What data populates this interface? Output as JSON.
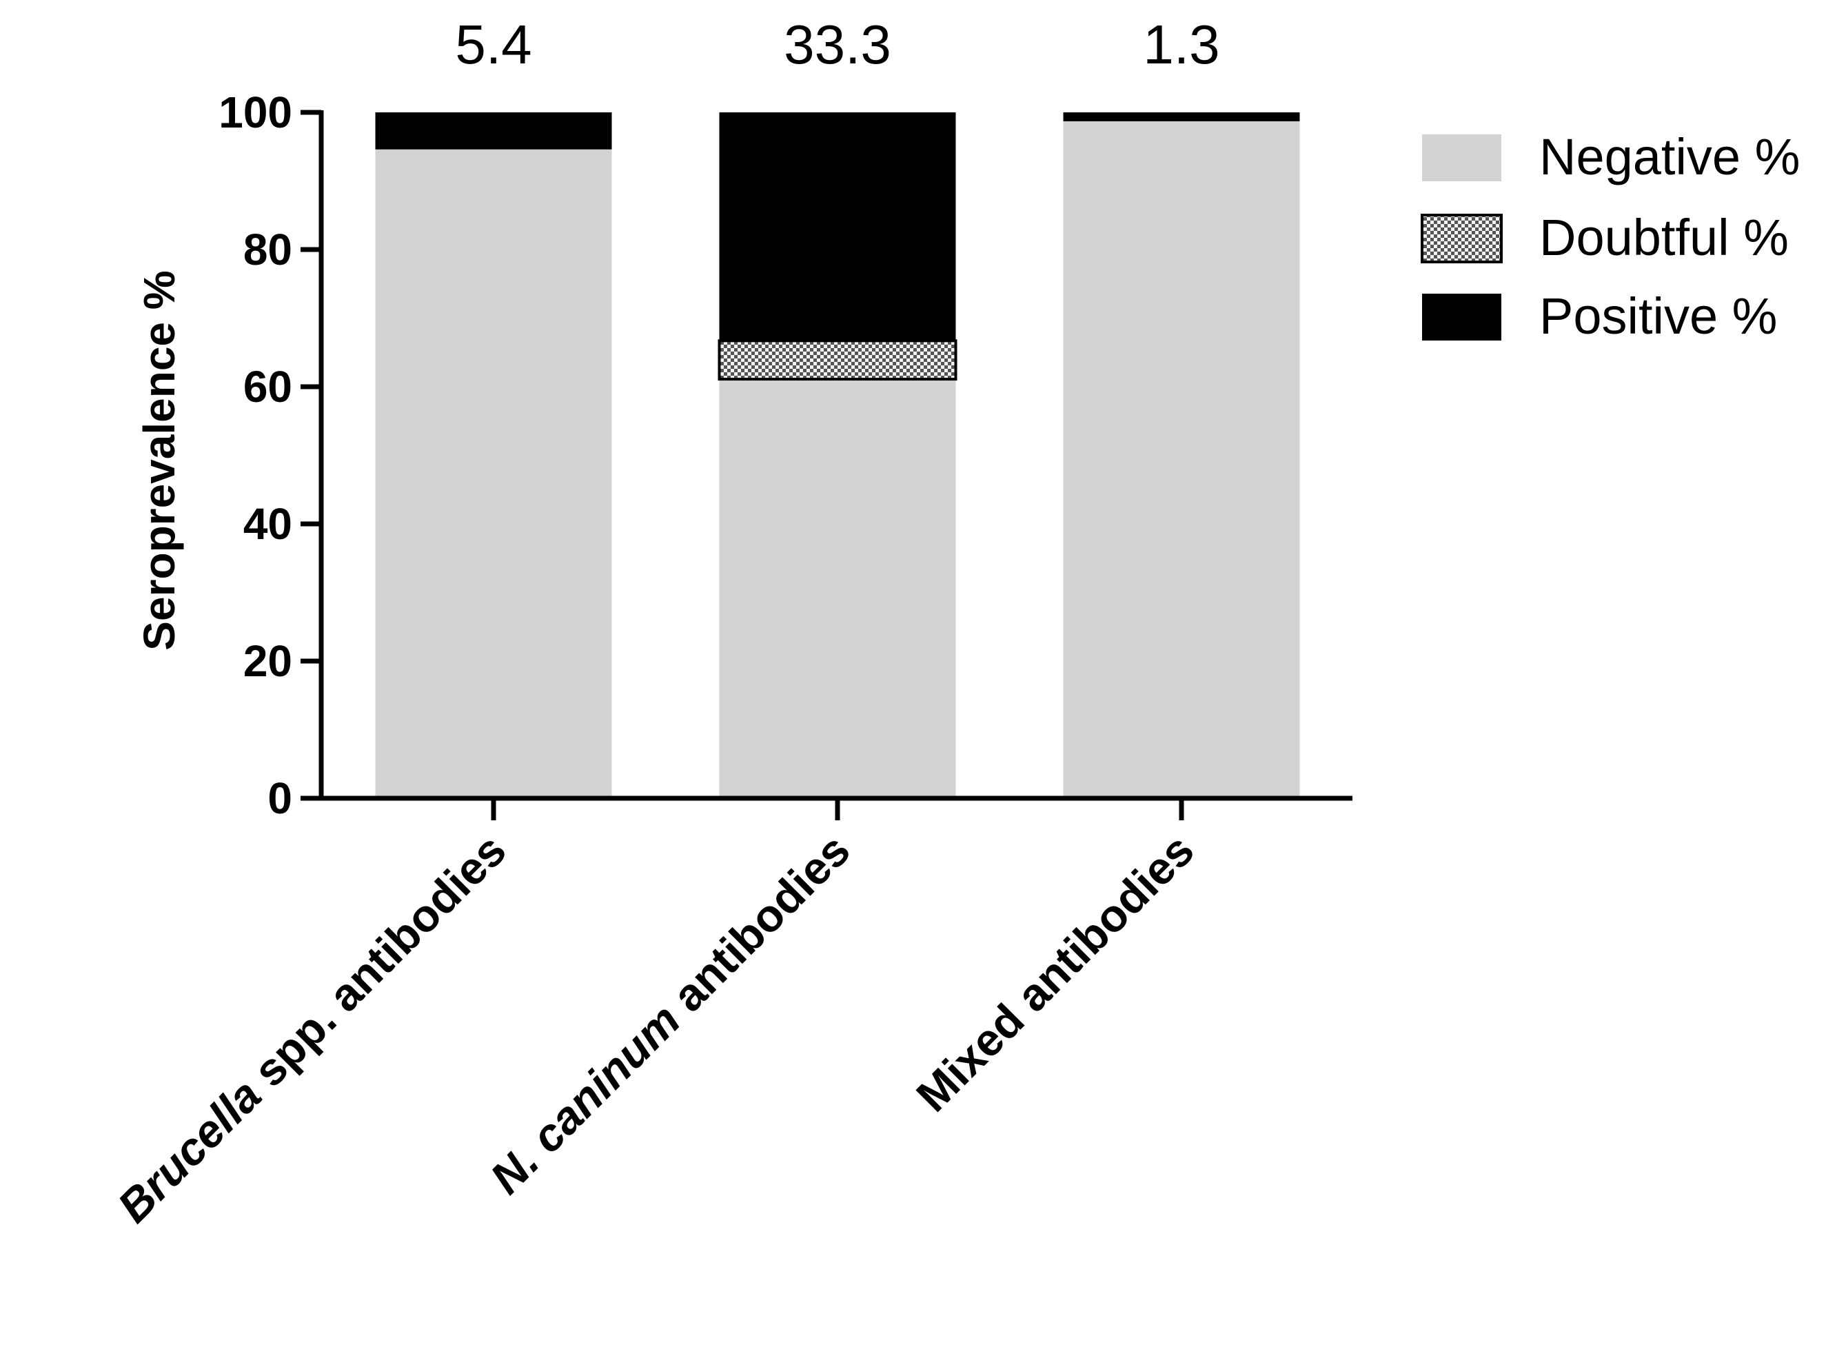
{
  "chart_data": {
    "type": "bar",
    "stacked": true,
    "ylabel": "Seroprevalence %",
    "xlabel": "",
    "ylim": [
      0,
      100
    ],
    "yticks": [
      0,
      20,
      40,
      60,
      80,
      100
    ],
    "categories": [
      {
        "parts": [
          {
            "text": "Brucella",
            "italic": true
          },
          {
            "text": " spp. antibodies",
            "italic": false
          }
        ]
      },
      {
        "parts": [
          {
            "text": "N. caninum",
            "italic": true
          },
          {
            "text": "  antibodies",
            "italic": false
          }
        ]
      },
      {
        "parts": [
          {
            "text": "Mixed antibodies",
            "italic": false
          }
        ]
      }
    ],
    "annotations": [
      "5.4",
      "33.3",
      "1.3"
    ],
    "series": [
      {
        "name": "Negative %",
        "values": [
          94.6,
          61.1,
          98.7
        ],
        "color": "#d3d3d3",
        "pattern": "solid"
      },
      {
        "name": "Doubtful %",
        "values": [
          0,
          5.6,
          0
        ],
        "color": "#b0b0b0",
        "pattern": "checker"
      },
      {
        "name": "Positive %",
        "values": [
          5.4,
          33.3,
          1.3
        ],
        "color": "#000000",
        "pattern": "solid"
      }
    ],
    "legend_position": "top-right",
    "grid": false
  }
}
